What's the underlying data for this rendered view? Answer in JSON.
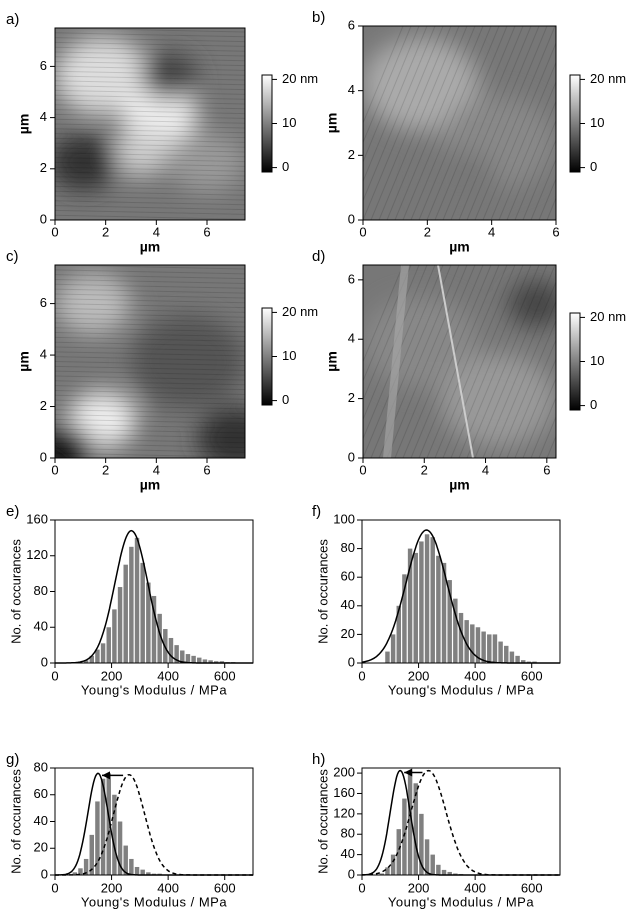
{
  "chart_data": [
    {
      "type": "image",
      "label": "a)",
      "xlabel": "µm",
      "ylabel": "µm",
      "xlim": [
        0,
        7.5
      ],
      "ylim": [
        0,
        7.5
      ],
      "xticks": [
        0,
        2,
        4,
        6
      ],
      "yticks": [
        0,
        2,
        4,
        6
      ],
      "clim": [
        -1,
        21
      ],
      "cticks": [
        {
          "value": 20,
          "label": "20 nm"
        },
        10,
        0
      ]
    },
    {
      "type": "image",
      "label": "b)",
      "xlabel": "µm",
      "ylabel": "µm",
      "xlim": [
        0,
        6
      ],
      "ylim": [
        0,
        6
      ],
      "xticks": [
        0,
        2,
        4,
        6
      ],
      "yticks": [
        0,
        2,
        4,
        6
      ],
      "clim": [
        -1,
        21
      ],
      "cticks": [
        {
          "value": 20,
          "label": "20 nm"
        },
        10,
        0
      ]
    },
    {
      "type": "image",
      "label": "c)",
      "xlabel": "µm",
      "ylabel": "µm",
      "xlim": [
        0,
        7.5
      ],
      "ylim": [
        0,
        7.5
      ],
      "xticks": [
        0,
        2,
        4,
        6
      ],
      "yticks": [
        0,
        2,
        4,
        6
      ],
      "clim": [
        -1,
        21
      ],
      "cticks": [
        {
          "value": 20,
          "label": "20 nm"
        },
        10,
        0
      ]
    },
    {
      "type": "image",
      "label": "d)",
      "xlabel": "µm",
      "ylabel": "µm",
      "xlim": [
        0,
        6.3
      ],
      "ylim": [
        0,
        6.5
      ],
      "xticks": [
        0,
        2,
        4,
        6
      ],
      "yticks": [
        0,
        2,
        4,
        6
      ],
      "clim": [
        -1,
        21
      ],
      "cticks": [
        {
          "value": 20,
          "label": "20 nm"
        },
        10,
        0
      ]
    },
    {
      "type": "histogram",
      "label": "e)",
      "xlabel": "Young's Modulus / MPa",
      "ylabel": "No. of occurances",
      "xlim": [
        0,
        700
      ],
      "ylim": [
        0,
        160
      ],
      "xticks": [
        0,
        200,
        400,
        600
      ],
      "yticks": [
        0,
        40,
        80,
        120,
        160
      ],
      "color": "#808080",
      "bins": [
        100,
        120,
        140,
        160,
        180,
        200,
        220,
        240,
        260,
        280,
        300,
        320,
        340,
        360,
        380,
        400,
        420,
        440,
        460,
        480,
        500,
        520,
        540,
        560,
        580,
        600,
        620,
        640
      ],
      "counts": [
        3,
        8,
        15,
        22,
        40,
        60,
        85,
        110,
        130,
        140,
        112,
        90,
        75,
        55,
        38,
        28,
        20,
        14,
        10,
        8,
        6,
        4,
        3,
        2,
        2,
        1,
        1
      ],
      "curves": [
        {
          "center": 270,
          "amplitude": 148,
          "sigma": 58,
          "style": "solid"
        }
      ]
    },
    {
      "type": "histogram",
      "label": "f)",
      "xlabel": "Young's Modulus / MPa",
      "ylabel": "No. of occurances",
      "xlim": [
        0,
        700
      ],
      "ylim": [
        0,
        100
      ],
      "xticks": [
        0,
        200,
        400,
        600
      ],
      "yticks": [
        0,
        20,
        40,
        60,
        80,
        100
      ],
      "color": "#808080",
      "bins": [
        80,
        100,
        120,
        140,
        160,
        180,
        200,
        220,
        240,
        260,
        280,
        300,
        320,
        340,
        360,
        380,
        400,
        420,
        440,
        460,
        480,
        500,
        520,
        540,
        560,
        580,
        600,
        620
      ],
      "counts": [
        8,
        20,
        40,
        62,
        80,
        77,
        85,
        90,
        88,
        75,
        70,
        58,
        45,
        35,
        30,
        27,
        25,
        22,
        20,
        20,
        15,
        12,
        8,
        5,
        2,
        1,
        1
      ],
      "curves": [
        {
          "center": 228,
          "amplitude": 93,
          "sigma": 72,
          "style": "solid"
        }
      ]
    },
    {
      "type": "histogram",
      "label": "g)",
      "xlabel": "Young's Modulus / MPa",
      "ylabel": "No. of occurances",
      "xlim": [
        0,
        700
      ],
      "ylim": [
        0,
        80
      ],
      "xticks": [
        0,
        200,
        400,
        600
      ],
      "yticks": [
        0,
        20,
        40,
        60,
        80
      ],
      "color": "#808080",
      "bins": [
        60,
        80,
        100,
        120,
        140,
        160,
        180,
        200,
        220,
        240,
        260,
        280,
        300,
        320,
        340,
        360,
        380
      ],
      "counts": [
        2,
        5,
        12,
        30,
        55,
        72,
        76,
        60,
        40,
        22,
        12,
        6,
        4,
        2,
        1,
        1
      ],
      "curves": [
        {
          "center": 152,
          "amplitude": 76,
          "sigma": 36,
          "style": "solid"
        },
        {
          "center": 262,
          "amplitude": 75,
          "sigma": 55,
          "style": "dashed"
        }
      ]
    },
    {
      "type": "histogram",
      "label": "h)",
      "xlabel": "Young's Modulus / MPa",
      "ylabel": "No. of occurances",
      "xlim": [
        0,
        700
      ],
      "ylim": [
        0,
        210
      ],
      "xticks": [
        0,
        200,
        400,
        600
      ],
      "yticks": [
        0,
        40,
        80,
        120,
        160,
        200
      ],
      "color": "#808080",
      "bins": [
        60,
        80,
        100,
        120,
        140,
        160,
        180,
        200,
        220,
        240,
        260,
        280,
        300,
        320,
        340,
        360
      ],
      "counts": [
        3,
        15,
        40,
        90,
        150,
        205,
        180,
        120,
        70,
        40,
        20,
        10,
        6,
        3,
        2
      ],
      "curves": [
        {
          "center": 135,
          "amplitude": 205,
          "sigma": 35,
          "style": "solid"
        },
        {
          "center": 235,
          "amplitude": 205,
          "sigma": 62,
          "style": "dashed"
        }
      ]
    }
  ]
}
